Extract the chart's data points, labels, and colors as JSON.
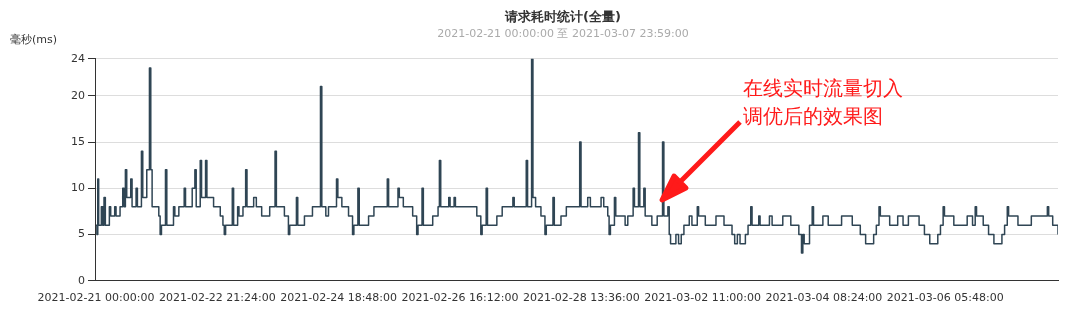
{
  "chart_data": {
    "type": "step",
    "title": "请求耗时统计(全量)",
    "subtitle": "2021-02-21 00:00:00 至 2021-03-07 23:59:00",
    "ylabel": "毫秒(ms)",
    "annotations": [
      "在线实时流量切入调优后的效果图"
    ],
    "xlim": [
      "2021-02-21T00:00",
      "2021-03-07T23:59"
    ],
    "xticks": [
      {
        "value": "2021-02-21T00:00",
        "label": "2021-02-21 00:00:00"
      },
      {
        "value": "2021-02-22T21:24",
        "label": "2021-02-22 21:24:00"
      },
      {
        "value": "2021-02-24T18:48",
        "label": "2021-02-24 18:48:00"
      },
      {
        "value": "2021-02-26T16:12",
        "label": "2021-02-26 16:12:00"
      },
      {
        "value": "2021-02-28T13:36",
        "label": "2021-02-28 13:36:00"
      },
      {
        "value": "2021-03-02T11:00",
        "label": "2021-03-02 11:00:00"
      },
      {
        "value": "2021-03-04T08:24",
        "label": "2021-03-04 08:24:00"
      },
      {
        "value": "2021-03-06T05:48",
        "label": "2021-03-06 05:48:00"
      }
    ],
    "ylim": [
      0,
      24
    ],
    "yticks": [
      0,
      5,
      10,
      15,
      20,
      24
    ],
    "grid": "y",
    "legend": false,
    "marker": "none",
    "line_style": "solid",
    "series": [
      {
        "color": "#2f4554",
        "x": [
          "2021-02-21T00:00",
          "2021-02-21T00:20",
          "2021-02-21T00:40",
          "2021-02-21T01:00",
          "2021-02-21T02:00",
          "2021-02-21T02:30",
          "2021-02-21T03:00",
          "2021-02-21T03:30",
          "2021-02-21T05:00",
          "2021-02-21T05:30",
          "2021-02-21T07:00",
          "2021-02-21T07:30",
          "2021-02-21T09:00",
          "2021-02-21T10:00",
          "2021-02-21T10:30",
          "2021-02-21T11:00",
          "2021-02-21T11:30",
          "2021-02-21T13:00",
          "2021-02-21T13:30",
          "2021-02-21T15:00",
          "2021-02-21T15:30",
          "2021-02-21T17:00",
          "2021-02-21T17:30",
          "2021-02-21T19:00",
          "2021-02-21T20:00",
          "2021-02-21T20:30",
          "2021-02-21T21:00",
          "2021-02-21T23:30",
          "2021-02-22T00:00",
          "2021-02-22T00:30",
          "2021-02-22T02:00",
          "2021-02-22T02:30",
          "2021-02-22T05:00",
          "2021-02-22T05:30",
          "2021-02-22T07:00",
          "2021-02-22T09:00",
          "2021-02-22T09:30",
          "2021-02-22T12:00",
          "2021-02-22T13:00",
          "2021-02-22T13:30",
          "2021-02-22T15:00",
          "2021-02-22T15:30",
          "2021-02-22T17:00",
          "2021-02-22T17:30",
          "2021-02-22T18:00",
          "2021-02-22T20:00",
          "2021-02-22T22:30",
          "2021-02-22T23:30",
          "2021-02-23T00:00",
          "2021-02-23T00:30",
          "2021-02-23T03:00",
          "2021-02-23T03:30",
          "2021-02-23T05:00",
          "2021-02-23T05:30",
          "2021-02-23T07:00",
          "2021-02-23T08:00",
          "2021-02-23T08:30",
          "2021-02-23T11:00",
          "2021-02-23T12:00",
          "2021-02-23T14:00",
          "2021-02-23T17:00",
          "2021-02-23T19:00",
          "2021-02-23T19:30",
          "2021-02-23T22:30",
          "2021-02-24T00:00",
          "2021-02-24T00:30",
          "2021-02-24T03:00",
          "2021-02-24T03:30",
          "2021-02-24T06:00",
          "2021-02-24T09:00",
          "2021-02-24T12:00",
          "2021-02-24T12:30",
          "2021-02-24T14:00",
          "2021-02-24T15:00",
          "2021-02-24T18:00",
          "2021-02-24T18:30",
          "2021-02-24T20:00",
          "2021-02-24T22:30",
          "2021-02-25T00:00",
          "2021-02-25T00:30",
          "2021-02-25T02:00",
          "2021-02-25T02:30",
          "2021-02-25T06:00",
          "2021-02-25T08:00",
          "2021-02-25T13:00",
          "2021-02-25T13:30",
          "2021-02-25T17:00",
          "2021-02-25T17:30",
          "2021-02-25T19:00",
          "2021-02-25T22:30",
          "2021-02-26T00:00",
          "2021-02-26T00:30",
          "2021-02-26T02:00",
          "2021-02-26T02:30",
          "2021-02-26T06:00",
          "2021-02-26T08:00",
          "2021-02-26T08:30",
          "2021-02-26T09:00",
          "2021-02-26T12:00",
          "2021-02-26T12:30",
          "2021-02-26T14:00",
          "2021-02-26T14:30",
          "2021-02-26T22:30",
          "2021-02-27T00:00",
          "2021-02-27T00:30",
          "2021-02-27T02:00",
          "2021-02-27T02:30",
          "2021-02-27T06:00",
          "2021-02-27T08:00",
          "2021-02-27T12:00",
          "2021-02-27T12:30",
          "2021-02-27T17:00",
          "2021-02-27T17:30",
          "2021-02-27T19:00",
          "2021-02-27T19:30",
          "2021-02-27T20:30",
          "2021-02-27T22:30",
          "2021-02-28T00:00",
          "2021-02-28T00:30",
          "2021-02-28T03:00",
          "2021-02-28T03:30",
          "2021-02-28T06:00",
          "2021-02-28T08:00",
          "2021-02-28T13:00",
          "2021-02-28T13:30",
          "2021-02-28T16:00",
          "2021-02-28T17:00",
          "2021-02-28T21:00",
          "2021-02-28T22:00",
          "2021-02-28T23:30",
          "2021-03-01T00:00",
          "2021-03-01T00:30",
          "2021-03-01T02:00",
          "2021-03-01T02:30",
          "2021-03-01T06:00",
          "2021-03-01T07:00",
          "2021-03-01T09:00",
          "2021-03-01T09:30",
          "2021-03-01T11:00",
          "2021-03-01T11:30",
          "2021-03-01T13:00",
          "2021-03-01T13:30",
          "2021-03-01T16:00",
          "2021-03-01T18:00",
          "2021-03-01T20:00",
          "2021-03-01T20:30",
          "2021-03-01T22:00",
          "2021-03-01T22:30",
          "2021-03-01T23:00",
          "2021-03-02T00:00",
          "2021-03-02T01:00",
          "2021-03-02T02:00",
          "2021-03-02T03:00",
          "2021-03-02T04:00",
          "2021-03-02T06:00",
          "2021-03-02T07:00",
          "2021-03-02T09:00",
          "2021-03-02T09:30",
          "2021-03-02T12:00",
          "2021-03-02T16:00",
          "2021-03-02T19:00",
          "2021-03-02T22:00",
          "2021-03-02T23:00",
          "2021-03-03T00:00",
          "2021-03-03T01:00",
          "2021-03-03T03:00",
          "2021-03-03T04:00",
          "2021-03-03T05:00",
          "2021-03-03T05:30",
          "2021-03-03T08:00",
          "2021-03-03T08:30",
          "2021-03-03T12:00",
          "2021-03-03T13:00",
          "2021-03-03T17:00",
          "2021-03-03T20:00",
          "2021-03-03T23:00",
          "2021-03-04T00:00",
          "2021-03-04T00:30",
          "2021-03-04T01:00",
          "2021-03-04T03:00",
          "2021-03-04T04:00",
          "2021-03-04T04:30",
          "2021-03-04T08:00",
          "2021-03-04T10:00",
          "2021-03-04T15:00",
          "2021-03-04T19:00",
          "2021-03-04T22:00",
          "2021-03-05T00:00",
          "2021-03-05T03:00",
          "2021-03-05T04:00",
          "2021-03-05T05:00",
          "2021-03-05T05:30",
          "2021-03-05T09:00",
          "2021-03-05T12:00",
          "2021-03-05T14:00",
          "2021-03-05T16:00",
          "2021-03-05T20:00",
          "2021-03-05T22:00",
          "2021-03-06T00:00",
          "2021-03-06T03:00",
          "2021-03-06T04:00",
          "2021-03-06T05:00",
          "2021-03-06T05:30",
          "2021-03-06T09:00",
          "2021-03-06T14:00",
          "2021-03-06T16:00",
          "2021-03-06T17:00",
          "2021-03-06T17:30",
          "2021-03-06T20:00",
          "2021-03-06T22:00",
          "2021-03-07T00:00",
          "2021-03-07T03:00",
          "2021-03-07T04:00",
          "2021-03-07T05:00",
          "2021-03-07T05:30",
          "2021-03-07T09:00",
          "2021-03-07T14:00",
          "2021-03-07T20:00",
          "2021-03-07T20:30",
          "2021-03-07T22:00",
          "2021-03-07T23:59"
        ],
        "values": [
          6,
          5,
          11,
          6,
          8,
          6,
          9,
          6,
          8,
          7,
          8,
          7,
          8,
          10,
          8,
          12,
          9,
          11,
          8,
          10,
          8,
          14,
          9,
          12,
          23,
          12,
          8,
          7,
          5,
          6,
          12,
          6,
          8,
          7,
          8,
          10,
          8,
          10,
          12,
          8,
          13,
          9,
          13,
          9,
          9,
          8,
          7,
          6,
          5,
          6,
          10,
          6,
          8,
          7,
          8,
          12,
          8,
          9,
          8,
          7,
          8,
          14,
          8,
          7,
          5,
          6,
          9,
          6,
          7,
          8,
          21,
          8,
          7,
          8,
          11,
          9,
          8,
          7,
          5,
          6,
          10,
          6,
          7,
          8,
          11,
          8,
          10,
          9,
          8,
          7,
          5,
          6,
          10,
          6,
          7,
          8,
          13,
          8,
          9,
          8,
          9,
          8,
          7,
          5,
          6,
          10,
          6,
          7,
          8,
          9,
          8,
          13,
          8,
          24,
          9,
          8,
          7,
          5,
          6,
          9,
          6,
          7,
          8,
          15,
          8,
          9,
          8,
          9,
          8,
          7,
          5,
          6,
          9,
          7,
          6,
          7,
          10,
          8,
          16,
          8,
          10,
          7,
          6,
          7,
          15,
          7,
          8,
          5,
          4,
          4,
          5,
          4,
          5,
          6,
          7,
          6,
          8,
          7,
          6,
          7,
          6,
          5,
          4,
          5,
          4,
          5,
          6,
          8,
          6,
          7,
          6,
          7,
          6,
          7,
          6,
          5,
          3,
          5,
          4,
          6,
          8,
          6,
          7,
          6,
          7,
          6,
          5,
          4,
          5,
          6,
          8,
          7,
          6,
          7,
          6,
          7,
          6,
          5,
          4,
          5,
          6,
          8,
          7,
          6,
          7,
          6,
          8,
          7,
          6,
          5,
          4,
          5,
          6,
          8,
          7,
          6,
          7,
          8,
          7,
          6,
          5
        ]
      }
    ]
  }
}
